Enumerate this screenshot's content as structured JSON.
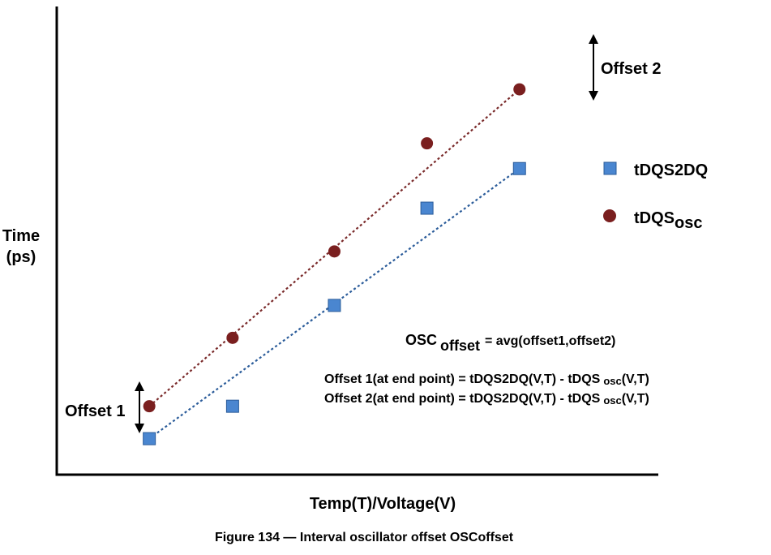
{
  "chart_data": {
    "type": "scatter",
    "title": "",
    "xlabel": "Temp(T)/Voltage(V)",
    "ylabel_lines": [
      "Time",
      "(ps)"
    ],
    "xlim": [
      0,
      6.5
    ],
    "ylim": [
      0,
      6.5
    ],
    "grid": false,
    "legend_placement": "right",
    "series": [
      {
        "name": "tDQS2DQ",
        "legend_label": "tDQS2DQ",
        "legend_sub": "",
        "marker": "square",
        "color": "#4a86d0",
        "trend_color": "#2b5c9a",
        "x": [
          1.0,
          1.9,
          3.0,
          4.0,
          5.0
        ],
        "y": [
          0.5,
          0.95,
          2.35,
          3.7,
          4.25
        ]
      },
      {
        "name": "tDQSosc",
        "legend_label": "tDQS",
        "legend_sub": "osc",
        "marker": "circle",
        "color": "#7a1f1f",
        "trend_color": "#7a2a2a",
        "x": [
          1.0,
          1.9,
          3.0,
          4.0,
          5.0
        ],
        "y": [
          0.95,
          1.9,
          3.1,
          4.6,
          5.35
        ]
      }
    ],
    "annotations": {
      "offset1": "Offset 1",
      "offset2": "Offset 2",
      "osc_main": "OSC",
      "osc_sub": "offset",
      "osc_rest": "= avg(offset1,offset2)",
      "eq1_pre": "Offset 1(at end point) = tDQS2DQ(V,T) - tDQS",
      "eq2_pre": "Offset 2(at end point) = tDQS2DQ(V,T) - tDQS",
      "eq_sub": "osc",
      "eq_post": "(V,T)"
    }
  },
  "caption": "Figure 134 — Interval oscillator offset OSCoffset"
}
